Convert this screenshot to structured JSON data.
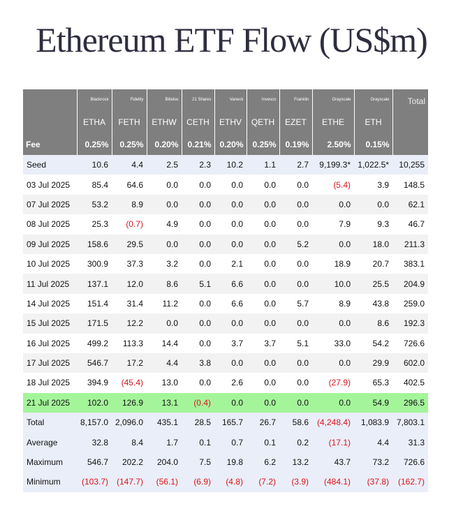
{
  "title": "Ethereum ETF Flow (US$m)",
  "table": {
    "issuers": [
      "Blackrock",
      "Fidelity",
      "Bitwise",
      "21 Shares",
      "Vaneck",
      "Invesco",
      "Franklin",
      "Grayscale",
      "Grayscale"
    ],
    "total_header": "Total",
    "tickers": [
      "ETHA",
      "FETH",
      "ETHW",
      "CETH",
      "ETHV",
      "QETH",
      "EZET",
      "ETHE",
      "ETH"
    ],
    "fee_label": "Fee",
    "fees": [
      "0.25%",
      "0.25%",
      "0.20%",
      "0.21%",
      "0.20%",
      "0.25%",
      "0.19%",
      "2.50%",
      "0.15%"
    ],
    "rows": [
      [
        "Seed",
        "10.6",
        "4.4",
        "2.5",
        "2.3",
        "10.2",
        "1.1",
        "2.7",
        "9,199.3*",
        "1,022.5*",
        "10,255"
      ],
      [
        "03 Jul 2025",
        "85.4",
        "64.6",
        "0.0",
        "0.0",
        "0.0",
        "0.0",
        "0.0",
        "(5.4)",
        "3.9",
        "148.5"
      ],
      [
        "07 Jul 2025",
        "53.2",
        "8.9",
        "0.0",
        "0.0",
        "0.0",
        "0.0",
        "0.0",
        "0.0",
        "0.0",
        "62.1"
      ],
      [
        "08 Jul 2025",
        "25.3",
        "(0.7)",
        "4.9",
        "0.0",
        "0.0",
        "0.0",
        "0.0",
        "7.9",
        "9.3",
        "46.7"
      ],
      [
        "09 Jul 2025",
        "158.6",
        "29.5",
        "0.0",
        "0.0",
        "0.0",
        "0.0",
        "5.2",
        "0.0",
        "18.0",
        "211.3"
      ],
      [
        "10 Jul 2025",
        "300.9",
        "37.3",
        "3.2",
        "0.0",
        "2.1",
        "0.0",
        "0.0",
        "18.9",
        "20.7",
        "383.1"
      ],
      [
        "11 Jul 2025",
        "137.1",
        "12.0",
        "8.6",
        "5.1",
        "6.6",
        "0.0",
        "0.0",
        "10.0",
        "25.5",
        "204.9"
      ],
      [
        "14 Jul 2025",
        "151.4",
        "31.4",
        "11.2",
        "0.0",
        "6.6",
        "0.0",
        "5.7",
        "8.9",
        "43.8",
        "259.0"
      ],
      [
        "15 Jul 2025",
        "171.5",
        "12.2",
        "0.0",
        "0.0",
        "0.0",
        "0.0",
        "0.0",
        "0.0",
        "8.6",
        "192.3"
      ],
      [
        "16 Jul 2025",
        "499.2",
        "113.3",
        "14.4",
        "0.0",
        "3.7",
        "3.7",
        "5.1",
        "33.0",
        "54.2",
        "726.6"
      ],
      [
        "17 Jul 2025",
        "546.7",
        "17.2",
        "4.4",
        "3.8",
        "0.0",
        "0.0",
        "0.0",
        "0.0",
        "29.9",
        "602.0"
      ],
      [
        "18 Jul 2025",
        "394.9",
        "(45.4)",
        "13.0",
        "0.0",
        "2.6",
        "0.0",
        "0.0",
        "(27.9)",
        "65.3",
        "402.5"
      ],
      [
        "21 Jul 2025",
        "102.0",
        "126.9",
        "13.1",
        "(0.4)",
        "0.0",
        "0.0",
        "0.0",
        "0.0",
        "54.9",
        "296.5"
      ],
      [
        "Total",
        "8,157.0",
        "2,096.0",
        "435.1",
        "28.5",
        "165.7",
        "26.7",
        "58.6",
        "(4,248.4)",
        "1,083.9",
        "7,803.1"
      ],
      [
        "Average",
        "32.8",
        "8.4",
        "1.7",
        "0.1",
        "0.7",
        "0.1",
        "0.2",
        "(17.1)",
        "4.4",
        "31.3"
      ],
      [
        "Maximum",
        "546.7",
        "202.2",
        "204.0",
        "7.5",
        "19.8",
        "6.2",
        "13.2",
        "43.7",
        "73.2",
        "726.6"
      ],
      [
        "Minimum",
        "(103.7)",
        "(147.7)",
        "(56.1)",
        "(6.9)",
        "(4.8)",
        "(7.2)",
        "(3.9)",
        "(484.1)",
        "(37.8)",
        "(162.7)"
      ]
    ]
  }
}
